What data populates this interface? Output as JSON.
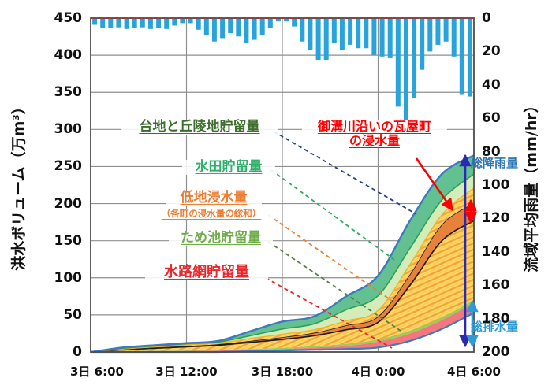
{
  "axes": {
    "left": {
      "title": "洪水ボリューム（万m³）",
      "ticks": [
        0,
        50,
        100,
        150,
        200,
        250,
        300,
        350,
        400,
        450
      ],
      "range": [
        0,
        450
      ]
    },
    "right": {
      "title": "流域平均雨量（mm/hr）",
      "ticks": [
        0,
        20,
        40,
        60,
        80,
        100,
        120,
        140,
        160,
        180,
        200
      ],
      "range": [
        0,
        200
      ],
      "inverted": true
    },
    "x": {
      "tick_labels": [
        "3日 6:00",
        "3日 12:00",
        "3日 18:00",
        "4日 0:00",
        "4日 6:00"
      ],
      "tick_hours": [
        0,
        6,
        12,
        18,
        24
      ]
    }
  },
  "annotations": {
    "plateau": {
      "label": "台地と丘陵地貯留量",
      "color": "#3c6e2d"
    },
    "paddy": {
      "label": "水田貯留量",
      "color": "#2eb06a"
    },
    "lowland": {
      "label": "低地浸水量",
      "sub": "（各町の浸水量の総和）",
      "color": "#ed7d31"
    },
    "pond": {
      "label": "ため池貯留量",
      "color": "#6fad49"
    },
    "channel": {
      "label": "水路網貯留量",
      "color": "#e8282d"
    },
    "kawaraya": {
      "line1": "御溝川沿いの瓦屋町",
      "line2": "の浸水量",
      "color": "#ff0000"
    },
    "total_rain": {
      "label": "総降雨量",
      "color": "#2e75b6"
    },
    "total_drain": {
      "label": "総排水量",
      "color": "#2e9bd6"
    }
  },
  "colors": {
    "bar_blue": "#29a3dc",
    "top_bottom_line_blue": "#3f79c0",
    "plateau_band": "#63c191",
    "paddy_band": "#d3ecb8",
    "paddy_edge_green": "#2f9e57",
    "orange_stripe_base": "#ffd966",
    "orange_stripe_line": "#f2a33c",
    "kawaraya_band": "#e8823b",
    "kawaraya_outline": "#1f1f1f",
    "pond_band": "#9ccc52",
    "channel_band": "#f4767f",
    "grid": "#8f8f8f",
    "border": "#4d4d4d",
    "top_dashed": "#a33a3a",
    "rain_arrow": "#2a2ab0",
    "drain_arrow": "#2e9bd6",
    "red_arrow": "#ff0000",
    "leader_plateau": "#27408b",
    "leader_paddy": "#2eac64",
    "leader_lowland": "#ed7d31",
    "leader_pond": "#55803f",
    "leader_channel": "#e8282d"
  },
  "chart_data": {
    "type": "combo: inverted bar (rainfall, right axis) + stacked area (flood volume, left axis)",
    "x_range_hours": [
      0,
      24
    ],
    "x_start_label": "3日 6:00",
    "x_end_label": "4日 6:00",
    "rainfall_bars": {
      "type": "bar",
      "axis": "right (0 at top, inverted, mm/hr)",
      "interval_minutes": 30,
      "unit": "mm/hr",
      "values": [
        4,
        6,
        6,
        5.5,
        6.5,
        6,
        5.5,
        6.5,
        6,
        6.5,
        4.5,
        3,
        3,
        7,
        10,
        14,
        12,
        9,
        11,
        15,
        13,
        10,
        6,
        2,
        2,
        5,
        14,
        19,
        25,
        25,
        15,
        19,
        16,
        18,
        18,
        22,
        23,
        24,
        53,
        63,
        48,
        31,
        20,
        16,
        14,
        23,
        46,
        47
      ]
    },
    "stacked_areas": {
      "type": "area",
      "axis": "left (万m³)",
      "note": "cumulative boundary heights (万m³) sampled every 2 hours from 3日6:00; each layer fills between consecutive boundaries; below drainage_bottom is water already drained",
      "sample_hours": [
        0,
        2,
        4,
        6,
        8,
        10,
        12,
        14,
        16,
        18,
        20,
        22,
        24
      ],
      "boundaries": {
        "drainage_bottom": [
          0,
          0,
          0,
          0,
          0,
          1,
          2,
          3,
          4,
          6,
          15,
          31,
          53
        ],
        "channel_network_top": [
          0,
          0.5,
          1,
          1.5,
          2,
          3,
          4,
          6,
          8,
          14,
          25,
          43,
          66
        ],
        "pond_top": [
          0,
          1,
          1.5,
          2,
          3,
          4,
          5.5,
          8,
          11,
          17,
          29,
          47,
          70
        ],
        "lowland_below_kawaraya_top": [
          0,
          3,
          5,
          7,
          9,
          13,
          17,
          22,
          30,
          40,
          90,
          150,
          177
        ],
        "kawaraya_top": [
          0,
          3.5,
          6,
          8,
          10.5,
          15,
          20,
          26,
          36,
          48,
          105,
          172,
          201
        ],
        "lowland_top": [
          0,
          4,
          7,
          9.5,
          12,
          18,
          24,
          30,
          42,
          56,
          118,
          185,
          221
        ],
        "paddy_top": [
          0,
          5,
          8,
          11,
          13.5,
          22,
          31,
          38,
          57,
          76,
          140,
          205,
          240
        ],
        "plateau_hill_top_total": [
          0,
          6,
          9,
          12,
          15,
          28,
          41,
          48,
          75,
          103,
          177,
          240,
          265
        ]
      },
      "totals_at_end": {
        "total_rainfall_equiv_万m3": 265,
        "total_drainage_万m3": 53,
        "kawaraya_inundation_万m3": 24
      }
    }
  }
}
